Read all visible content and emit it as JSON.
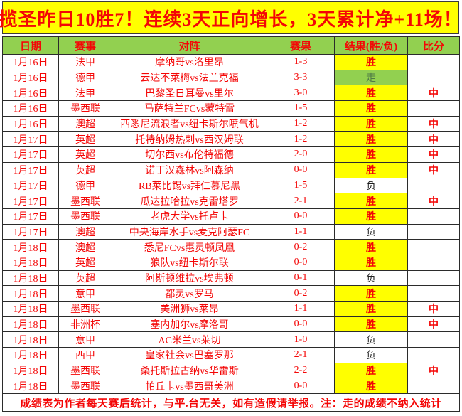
{
  "header": {
    "title": "揽圣昨日10胜7！连续3天正向增长，3天累计净+11场！"
  },
  "table": {
    "columns": [
      "日期",
      "赛事",
      "对阵",
      "赛果",
      "结果(胜/负)",
      "比分"
    ],
    "rows": [
      {
        "date": "1月16日",
        "league": "法甲",
        "match": "摩纳哥vs洛里昂",
        "score": "1-3",
        "result": "胜",
        "result_type": "win",
        "mark": ""
      },
      {
        "date": "1月16日",
        "league": "德甲",
        "match": "云达不莱梅vs法兰克福",
        "score": "3-3",
        "result": "走",
        "result_type": "push",
        "mark": ""
      },
      {
        "date": "1月16日",
        "league": "法甲",
        "match": "巴黎圣日耳曼vs里尔",
        "score": "3-0",
        "result": "胜",
        "result_type": "win",
        "mark": "中"
      },
      {
        "date": "1月16日",
        "league": "墨西联",
        "match": "马萨特兰FCvs蒙特雷",
        "score": "1-5",
        "result": "胜",
        "result_type": "win",
        "mark": ""
      },
      {
        "date": "1月16日",
        "league": "澳超",
        "match": "西悉尼流浪者vs纽卡斯尔喷气机",
        "score": "1-2",
        "result": "胜",
        "result_type": "win",
        "mark": "中"
      },
      {
        "date": "1月17日",
        "league": "英超",
        "match": "托特纳姆热刺vs西汉姆联",
        "score": "1-2",
        "result": "胜",
        "result_type": "win",
        "mark": "中"
      },
      {
        "date": "1月17日",
        "league": "英超",
        "match": "切尔西vs布伦特福德",
        "score": "2-0",
        "result": "胜",
        "result_type": "win",
        "mark": "中"
      },
      {
        "date": "1月17日",
        "league": "英超",
        "match": "诺丁汉森林vs阿森纳",
        "score": "0-0",
        "result": "胜",
        "result_type": "win",
        "mark": "中"
      },
      {
        "date": "1月17日",
        "league": "德甲",
        "match": "RB莱比锡vs拜仁慕尼黑",
        "score": "1-5",
        "result": "负",
        "result_type": "loss",
        "mark": ""
      },
      {
        "date": "1月17日",
        "league": "墨西联",
        "match": "瓜达拉哈拉vs克雷塔罗",
        "score": "2-1",
        "result": "胜",
        "result_type": "win",
        "mark": "中"
      },
      {
        "date": "1月17日",
        "league": "墨西联",
        "match": "老虎大学vs托卢卡",
        "score": "0-0",
        "result": "胜",
        "result_type": "win",
        "mark": ""
      },
      {
        "date": "1月17日",
        "league": "澳超",
        "match": "中央海岸水手vs麦克阿瑟FC",
        "score": "1-1",
        "result": "负",
        "result_type": "loss",
        "mark": ""
      },
      {
        "date": "1月18日",
        "league": "澳超",
        "match": "悉尼FCvs惠灵顿凤凰",
        "score": "0-2",
        "result": "胜",
        "result_type": "win",
        "mark": ""
      },
      {
        "date": "1月18日",
        "league": "英超",
        "match": "狼队vs纽卡斯尔联",
        "score": "0-0",
        "result": "胜",
        "result_type": "win",
        "mark": ""
      },
      {
        "date": "1月18日",
        "league": "英超",
        "match": "阿斯顿维拉vs埃弗顿",
        "score": "0-1",
        "result": "负",
        "result_type": "loss",
        "mark": ""
      },
      {
        "date": "1月18日",
        "league": "意甲",
        "match": "都灵vs罗马",
        "score": "0-2",
        "result": "胜",
        "result_type": "win",
        "mark": ""
      },
      {
        "date": "1月18日",
        "league": "墨西联",
        "match": "美洲狮vs莱昂",
        "score": "1-1",
        "result": "胜",
        "result_type": "win",
        "mark": "中"
      },
      {
        "date": "1月18日",
        "league": "非洲杯",
        "match": "塞内加尔vs摩洛哥",
        "score": "0-0",
        "result": "胜",
        "result_type": "win",
        "mark": "中"
      },
      {
        "date": "1月18日",
        "league": "意甲",
        "match": "AC米兰vs莱切",
        "score": "1-0",
        "result": "负",
        "result_type": "loss",
        "mark": ""
      },
      {
        "date": "1月18日",
        "league": "西甲",
        "match": "皇家社会vs巴塞罗那",
        "score": "2-1",
        "result": "负",
        "result_type": "loss",
        "mark": ""
      },
      {
        "date": "1月18日",
        "league": "墨西联",
        "match": "桑托斯拉古纳vs华雷斯",
        "score": "2-2",
        "result": "胜",
        "result_type": "win",
        "mark": "中"
      },
      {
        "date": "1月18日",
        "league": "墨西联",
        "match": "帕丘卡vs墨西哥美洲",
        "score": "0-0",
        "result": "胜",
        "result_type": "win",
        "mark": ""
      }
    ]
  },
  "footer": {
    "note": "成绩表为作者每天赛后统计，与平.台无关，如有造假请举报。注：走的成绩不纳入统计"
  },
  "colors": {
    "title_bg": "#ffff00",
    "text_red": "#f40606",
    "header_bg": "#92d050",
    "win_bg": "#ffff00",
    "push_bg": "#92d050",
    "push_text": "#4f7a46",
    "loss_text": "#1f1f1f"
  }
}
